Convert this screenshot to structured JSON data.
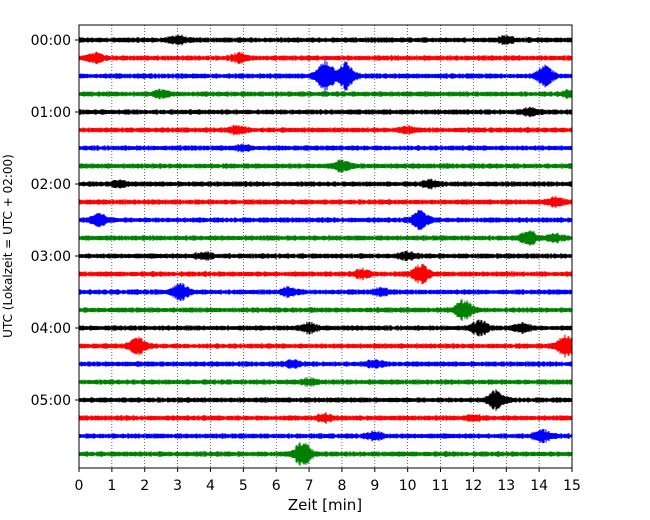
{
  "chart_data": {
    "type": "line",
    "subtype": "helicorder",
    "xlabel": "Zeit  [min]",
    "ylabel": "UTC (Lokalzeit = UTC + 02:00)",
    "xlim": [
      0,
      15
    ],
    "x_ticks": [
      "0",
      "1",
      "2",
      "3",
      "4",
      "5",
      "6",
      "7",
      "8",
      "9",
      "10",
      "11",
      "12",
      "13",
      "14",
      "15"
    ],
    "y_ticks": [
      "00:00",
      "01:00",
      "02:00",
      "03:00",
      "04:00",
      "05:00"
    ],
    "grid": "vertical dotted at each minute",
    "row_interval_minutes": 15,
    "trace_colors": [
      "#000000",
      "#ff0000",
      "#0000ff",
      "#008000"
    ],
    "rows": [
      {
        "start": "00:00",
        "events": [
          {
            "t": 3.0,
            "amp": 0.5
          },
          {
            "t": 13.0,
            "amp": 0.4
          }
        ]
      },
      {
        "start": "00:15",
        "events": [
          {
            "t": 0.5,
            "amp": 0.6
          },
          {
            "t": 4.9,
            "amp": 0.5
          }
        ]
      },
      {
        "start": "00:30",
        "events": [
          {
            "t": 7.5,
            "amp": 2.2
          },
          {
            "t": 8.1,
            "amp": 1.8
          },
          {
            "t": 14.2,
            "amp": 1.3
          }
        ]
      },
      {
        "start": "00:45",
        "events": [
          {
            "t": 2.5,
            "amp": 0.4
          },
          {
            "t": 15.0,
            "amp": 0.5
          }
        ]
      },
      {
        "start": "01:00",
        "events": [
          {
            "t": 13.7,
            "amp": 0.4
          }
        ]
      },
      {
        "start": "01:15",
        "events": [
          {
            "t": 4.8,
            "amp": 0.4
          },
          {
            "t": 10.0,
            "amp": 0.3
          }
        ]
      },
      {
        "start": "01:30",
        "events": [
          {
            "t": 5.0,
            "amp": 0.3
          }
        ]
      },
      {
        "start": "01:45",
        "events": [
          {
            "t": 8.0,
            "amp": 0.6
          }
        ]
      },
      {
        "start": "02:00",
        "events": [
          {
            "t": 1.2,
            "amp": 0.3
          },
          {
            "t": 10.7,
            "amp": 0.4
          }
        ]
      },
      {
        "start": "02:15",
        "events": [
          {
            "t": 14.5,
            "amp": 0.5
          }
        ]
      },
      {
        "start": "02:30",
        "events": [
          {
            "t": 0.6,
            "amp": 0.8
          },
          {
            "t": 10.4,
            "amp": 1.2
          }
        ]
      },
      {
        "start": "02:45",
        "events": [
          {
            "t": 13.7,
            "amp": 0.8
          },
          {
            "t": 14.5,
            "amp": 0.4
          }
        ]
      },
      {
        "start": "03:00",
        "events": [
          {
            "t": 3.8,
            "amp": 0.4
          },
          {
            "t": 10.0,
            "amp": 0.4
          }
        ]
      },
      {
        "start": "03:15",
        "events": [
          {
            "t": 8.6,
            "amp": 0.5
          },
          {
            "t": 10.4,
            "amp": 1.2
          }
        ]
      },
      {
        "start": "03:30",
        "events": [
          {
            "t": 3.1,
            "amp": 1.0
          },
          {
            "t": 6.4,
            "amp": 0.5
          },
          {
            "t": 9.2,
            "amp": 0.4
          }
        ]
      },
      {
        "start": "03:45",
        "events": [
          {
            "t": 11.7,
            "amp": 1.3
          }
        ]
      },
      {
        "start": "04:00",
        "events": [
          {
            "t": 7.0,
            "amp": 0.6
          },
          {
            "t": 12.2,
            "amp": 0.9
          },
          {
            "t": 13.5,
            "amp": 0.5
          }
        ]
      },
      {
        "start": "04:15",
        "events": [
          {
            "t": 1.8,
            "amp": 1.1
          },
          {
            "t": 14.8,
            "amp": 1.4
          }
        ]
      },
      {
        "start": "04:30",
        "events": [
          {
            "t": 6.5,
            "amp": 0.4
          },
          {
            "t": 9.0,
            "amp": 0.4
          }
        ]
      },
      {
        "start": "04:45",
        "events": [
          {
            "t": 7.0,
            "amp": 0.3
          }
        ]
      },
      {
        "start": "05:00",
        "events": [
          {
            "t": 12.7,
            "amp": 1.2
          }
        ]
      },
      {
        "start": "05:15",
        "events": [
          {
            "t": 7.5,
            "amp": 0.4
          },
          {
            "t": 12.0,
            "amp": 0.3
          }
        ]
      },
      {
        "start": "05:30",
        "events": [
          {
            "t": 9.0,
            "amp": 0.5
          },
          {
            "t": 14.1,
            "amp": 0.7
          }
        ]
      },
      {
        "start": "05:45",
        "events": [
          {
            "t": 6.8,
            "amp": 1.6
          }
        ]
      }
    ]
  }
}
